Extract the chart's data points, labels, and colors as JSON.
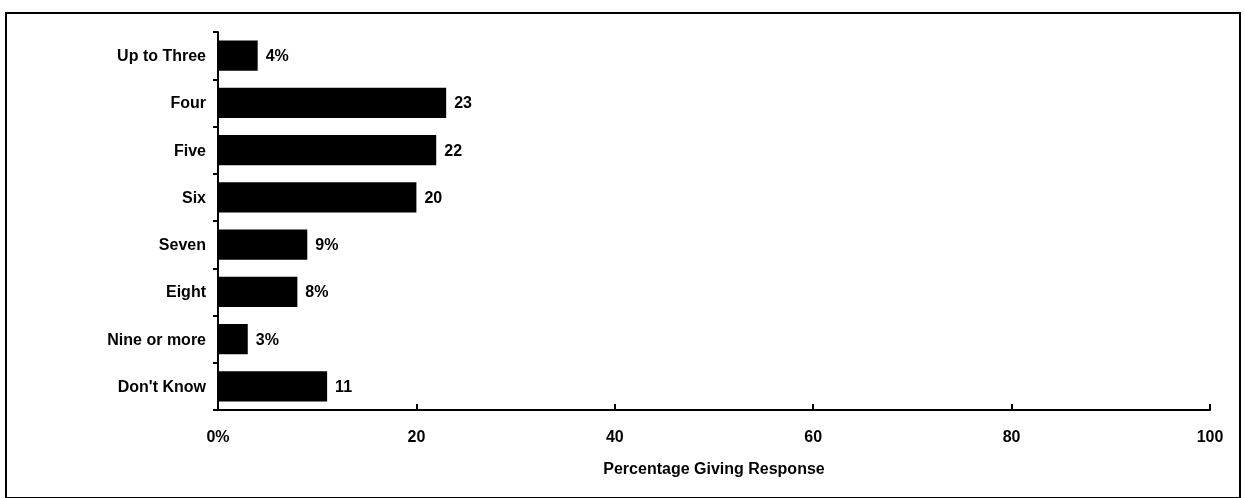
{
  "chart_data": {
    "type": "bar",
    "orientation": "horizontal",
    "xlabel": "Percentage Giving Response",
    "categories": [
      "Up to Three",
      "Four",
      "Five",
      "Six",
      "Seven",
      "Eight",
      "Nine or more",
      "Don't Know"
    ],
    "values": [
      4,
      23,
      22,
      20,
      9,
      8,
      3,
      11
    ],
    "color": "#000000",
    "value_labels": [
      "4%",
      "23",
      "22",
      "20",
      "9%",
      "8%",
      "3%",
      "11"
    ],
    "xlim": [
      0,
      100
    ],
    "xticks": [
      {
        "value": 0,
        "label": "0%"
      },
      20,
      40,
      60,
      80,
      100
    ],
    "grid": false
  }
}
